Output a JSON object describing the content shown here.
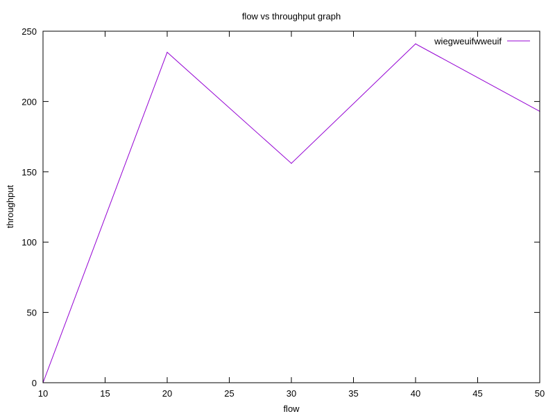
{
  "chart_data": {
    "type": "line",
    "title": "flow vs throughput graph",
    "xlabel": "flow",
    "ylabel": "throughput",
    "xlim": [
      10,
      50
    ],
    "ylim": [
      0,
      250
    ],
    "xticks": [
      10,
      15,
      20,
      25,
      30,
      35,
      40,
      45,
      50
    ],
    "yticks": [
      0,
      50,
      100,
      150,
      200,
      250
    ],
    "xtick_labels": [
      "10",
      "15",
      "20",
      "25",
      "30",
      "35",
      "40",
      "45",
      "50"
    ],
    "ytick_labels": [
      "0",
      "50",
      "100",
      "150",
      "200",
      "250"
    ],
    "grid": false,
    "legend_position": "top-right",
    "series": [
      {
        "name": "wiegweuifwweuif",
        "color": "#9400d3",
        "x": [
          10,
          20,
          30,
          40,
          50
        ],
        "y": [
          0,
          235,
          156,
          241,
          193
        ]
      }
    ]
  }
}
